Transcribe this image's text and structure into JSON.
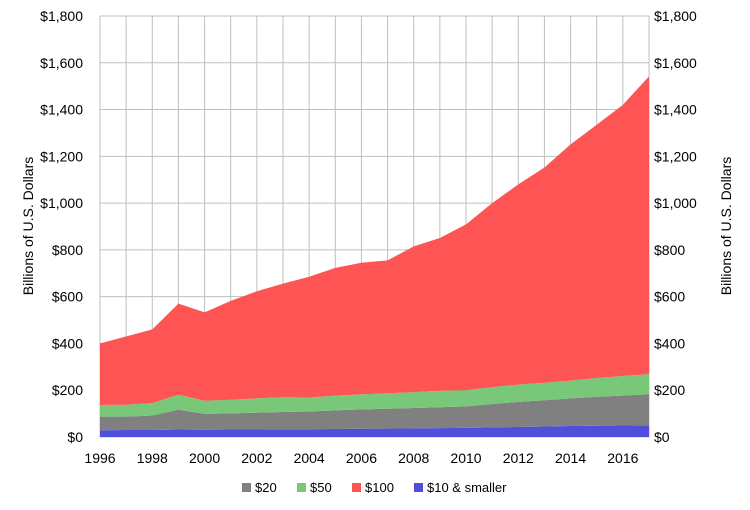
{
  "chart_data": {
    "type": "area",
    "stacked": true,
    "x": [
      1996,
      1997,
      1998,
      1999,
      2000,
      2001,
      2002,
      2003,
      2004,
      2005,
      2006,
      2007,
      2008,
      2009,
      2010,
      2011,
      2012,
      2013,
      2014,
      2015,
      2016,
      2017
    ],
    "series": [
      {
        "name": "$10 & smaller",
        "color": "#4f4fdc",
        "values": [
          29,
          30,
          30,
          32,
          31,
          32,
          32,
          33,
          33,
          34,
          35,
          36,
          37,
          38,
          39,
          41,
          43,
          45,
          47,
          48,
          49,
          50
        ]
      },
      {
        "name": "$20",
        "color": "#808080",
        "values": [
          58,
          57,
          62,
          85,
          68,
          69,
          72,
          74,
          76,
          80,
          83,
          85,
          87,
          89,
          92,
          100,
          107,
          112,
          118,
          124,
          128,
          133
        ]
      },
      {
        "name": "$50",
        "color": "#79c879",
        "values": [
          50,
          51,
          53,
          64,
          56,
          58,
          61,
          63,
          60,
          63,
          64,
          66,
          68,
          71,
          69,
          72,
          74,
          75,
          76,
          80,
          84,
          86
        ]
      },
      {
        "name": "$100",
        "color": "#fe5454",
        "values": [
          263,
          292,
          315,
          389,
          378,
          423,
          458,
          486,
          516,
          546,
          563,
          568,
          623,
          653,
          709,
          787,
          856,
          920,
          1010,
          1083,
          1159,
          1273
        ]
      }
    ],
    "legend_order": [
      "$20",
      "$50",
      "$100",
      "$10 & smaller"
    ],
    "legend_position": "bottom",
    "ylabel": "Billions of U.S. Dollars",
    "ylabel_right": "Billions of U.S. Dollars",
    "ylim": [
      0,
      1800
    ],
    "y_ticks": [
      "$0",
      "$200",
      "$400",
      "$600",
      "$800",
      "$1,000",
      "$1,200",
      "$1,400",
      "$1,600",
      "$1,800"
    ],
    "y_tick_values": [
      0,
      200,
      400,
      600,
      800,
      1000,
      1200,
      1400,
      1600,
      1800
    ],
    "x_ticks": [
      "1996",
      "1998",
      "2000",
      "2002",
      "2004",
      "2006",
      "2008",
      "2010",
      "2012",
      "2014",
      "2016"
    ],
    "x_tick_values": [
      1996,
      1998,
      2000,
      2002,
      2004,
      2006,
      2008,
      2010,
      2012,
      2014,
      2016
    ],
    "grid": true
  }
}
